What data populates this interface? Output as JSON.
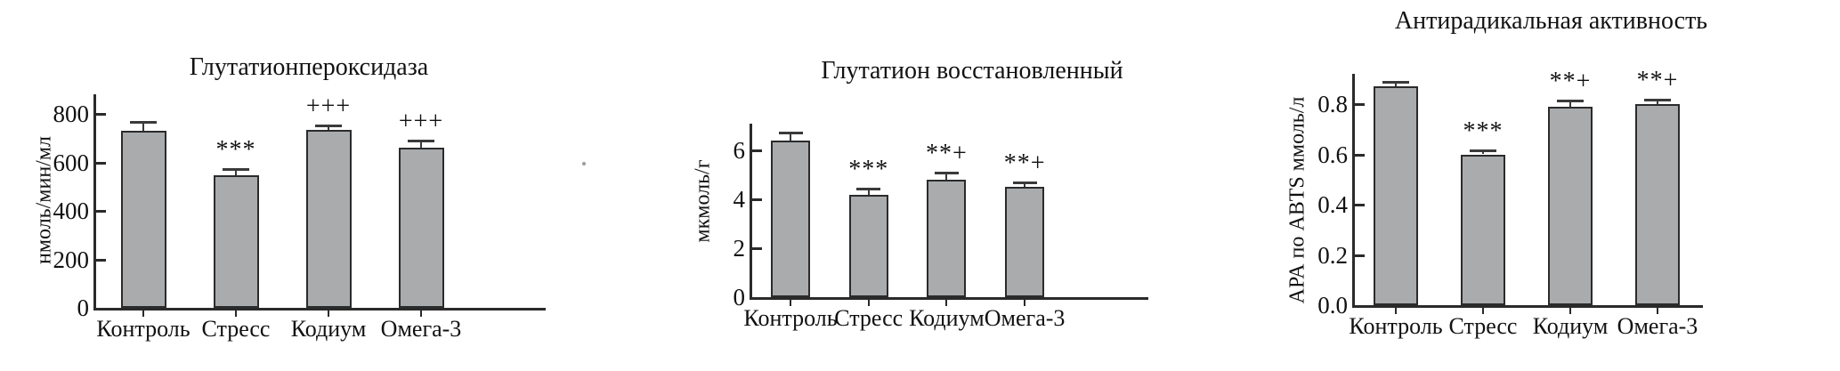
{
  "figure": {
    "background": "#ffffff",
    "bar_fill": "#a9abad",
    "bar_border": "#2b2b2b",
    "axis_color": "#2a2a2a",
    "categories": [
      "Контроль",
      "Стресс",
      "Кодиум",
      "Омега-3"
    ]
  },
  "chart_data": [
    {
      "type": "bar",
      "title": "Глутатионпероксидаза",
      "ylabel": "нмоль/мин/мл",
      "xlabel": "",
      "categories": [
        "Контроль",
        "Стресс",
        "Кодиум",
        "Омега-3"
      ],
      "values": [
        730,
        545,
        735,
        660
      ],
      "errors": [
        35,
        25,
        15,
        25
      ],
      "annotations": [
        "",
        "***",
        "+++",
        "+++"
      ],
      "ytick_values": [
        0,
        200,
        400,
        600,
        800
      ],
      "ytick_labels": [
        "0",
        "200",
        "400",
        "600",
        "800"
      ],
      "ylim": [
        0,
        880
      ],
      "grid": false,
      "legend": "none"
    },
    {
      "type": "bar",
      "title": "Глутатион восстановленный",
      "ylabel": "мкмоль/г",
      "xlabel": "",
      "categories": [
        "Контроль",
        "Стресс",
        "Кодиум",
        "Омега-3"
      ],
      "values": [
        6.4,
        4.2,
        4.8,
        4.5
      ],
      "errors": [
        0.3,
        0.2,
        0.25,
        0.15
      ],
      "annotations": [
        "",
        "***",
        "**+",
        "**+"
      ],
      "ytick_values": [
        0,
        2,
        4,
        6
      ],
      "ytick_labels": [
        "0",
        "2",
        "4",
        "6"
      ],
      "ylim": [
        0,
        7.1
      ],
      "grid": false,
      "legend": "none"
    },
    {
      "type": "bar",
      "title": "Антирадикальная активность",
      "ylabel": "АРА по ABTS ммоль/л",
      "xlabel": "",
      "categories": [
        "Контроль",
        "Стресс",
        "Кодиум",
        "Омега-3"
      ],
      "values": [
        0.87,
        0.6,
        0.79,
        0.8
      ],
      "errors": [
        0.015,
        0.012,
        0.02,
        0.015
      ],
      "annotations": [
        "",
        "***",
        "**+",
        "**+"
      ],
      "ytick_values": [
        0,
        0.2,
        0.4,
        0.6,
        0.8
      ],
      "ytick_labels": [
        "0.0",
        "0.2",
        "0.4",
        "0.6",
        "0.8"
      ],
      "ylim": [
        0,
        0.92
      ],
      "grid": false,
      "legend": "none"
    }
  ]
}
